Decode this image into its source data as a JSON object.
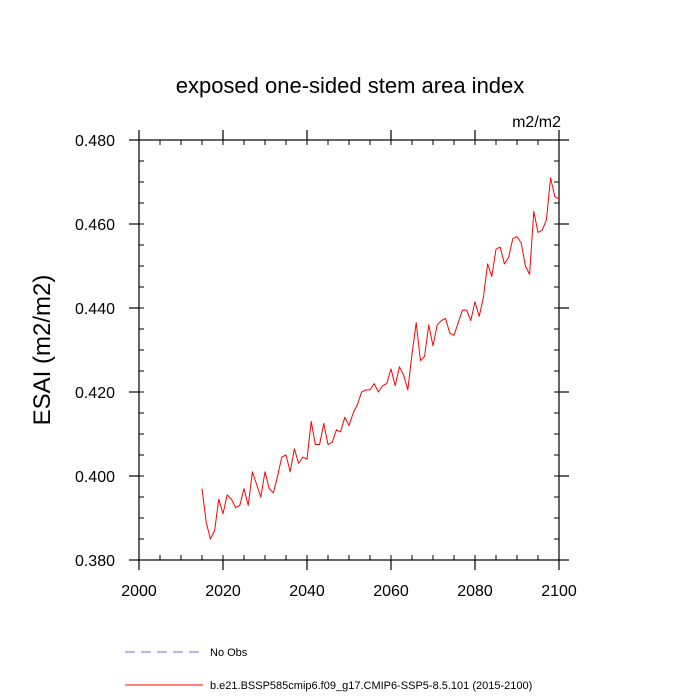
{
  "chart_data": {
    "type": "line",
    "title": "exposed one-sided stem area index",
    "units": "m2/m2",
    "ylabel": "ESAI  (m2/m2)",
    "xlabel": "",
    "xlim": [
      2000,
      2100
    ],
    "ylim": [
      0.38,
      0.48
    ],
    "x_ticks": [
      2000,
      2020,
      2040,
      2060,
      2080,
      2100
    ],
    "x_tick_labels": [
      "2000",
      "2020",
      "2040",
      "2060",
      "2080",
      "2100"
    ],
    "y_ticks": [
      0.38,
      0.4,
      0.42,
      0.44,
      0.46,
      0.48
    ],
    "y_tick_labels": [
      "0.380",
      "0.400",
      "0.420",
      "0.440",
      "0.460",
      "0.480"
    ],
    "grid": false,
    "legend_position": "bottom",
    "series": [
      {
        "name": "No Obs",
        "color": "#6f6fdf",
        "style": "dashed",
        "x": [],
        "y": []
      },
      {
        "name": "b.e21.BSSP585cmip6.f09_g17.CMIP6-SSP5-8.5.101 (2015-2100)",
        "color": "#ff0000",
        "style": "solid",
        "x": [
          2015,
          2016,
          2017,
          2018,
          2019,
          2020,
          2021,
          2022,
          2023,
          2024,
          2025,
          2026,
          2027,
          2028,
          2029,
          2030,
          2031,
          2032,
          2033,
          2034,
          2035,
          2036,
          2037,
          2038,
          2039,
          2040,
          2041,
          2042,
          2043,
          2044,
          2045,
          2046,
          2047,
          2048,
          2049,
          2050,
          2051,
          2052,
          2053,
          2054,
          2055,
          2056,
          2057,
          2058,
          2059,
          2060,
          2061,
          2062,
          2063,
          2064,
          2065,
          2066,
          2067,
          2068,
          2069,
          2070,
          2071,
          2072,
          2073,
          2074,
          2075,
          2076,
          2077,
          2078,
          2079,
          2080,
          2081,
          2082,
          2083,
          2084,
          2085,
          2086,
          2087,
          2088,
          2089,
          2090,
          2091,
          2092,
          2093,
          2094,
          2095,
          2096,
          2097,
          2098,
          2099,
          2100
        ],
        "y": [
          0.397,
          0.389,
          0.385,
          0.387,
          0.3945,
          0.391,
          0.3955,
          0.3945,
          0.3925,
          0.393,
          0.397,
          0.393,
          0.401,
          0.398,
          0.395,
          0.401,
          0.397,
          0.396,
          0.4,
          0.4045,
          0.405,
          0.401,
          0.4065,
          0.403,
          0.4045,
          0.404,
          0.413,
          0.4075,
          0.4075,
          0.4125,
          0.4075,
          0.408,
          0.411,
          0.4105,
          0.414,
          0.412,
          0.415,
          0.417,
          0.42,
          0.4205,
          0.4205,
          0.422,
          0.42,
          0.4215,
          0.422,
          0.4255,
          0.4215,
          0.426,
          0.424,
          0.4205,
          0.429,
          0.4365,
          0.4275,
          0.4285,
          0.436,
          0.431,
          0.436,
          0.437,
          0.4375,
          0.434,
          0.4335,
          0.4365,
          0.4395,
          0.4395,
          0.437,
          0.4415,
          0.438,
          0.4425,
          0.4505,
          0.4475,
          0.454,
          0.4545,
          0.4505,
          0.452,
          0.4565,
          0.457,
          0.4555,
          0.45,
          0.448,
          0.463,
          0.458,
          0.4585,
          0.461,
          0.471,
          0.4665,
          0.466
        ]
      }
    ]
  }
}
